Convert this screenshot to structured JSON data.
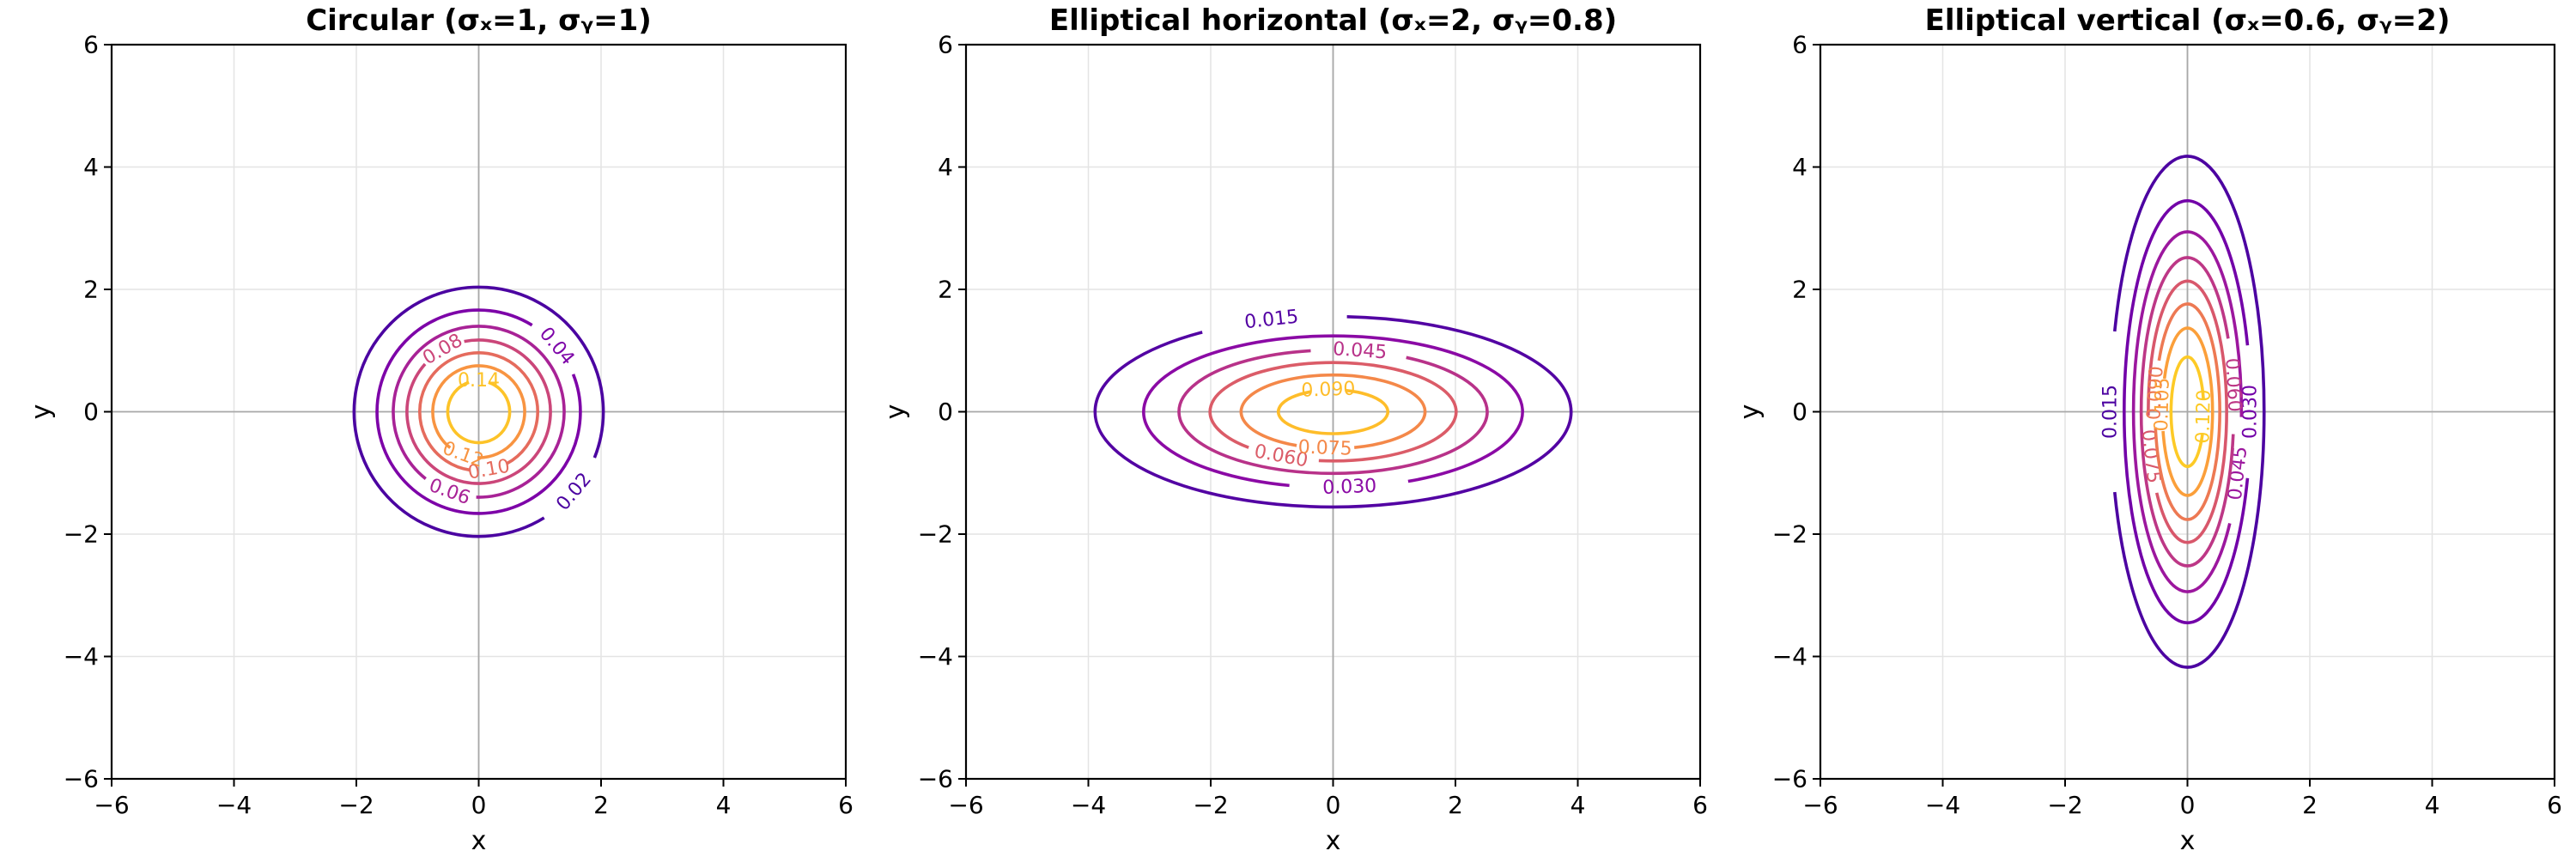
{
  "figure": {
    "background": "#ffffff",
    "colormap": [
      "#0d0887",
      "#6a00a8",
      "#b12a90",
      "#e16462",
      "#fca636",
      "#f0f921"
    ]
  },
  "chart_data": [
    {
      "type": "contour",
      "title": "Circular (σₓ=1, σᵧ=1)",
      "xlabel": "x",
      "ylabel": "y",
      "xlim": [
        -6,
        6
      ],
      "ylim": [
        -6,
        6
      ],
      "xticks": [
        -6,
        -4,
        -2,
        0,
        2,
        4,
        6
      ],
      "yticks": [
        -6,
        -4,
        -2,
        0,
        2,
        4,
        6
      ],
      "tick_labels": [
        "−6",
        "−4",
        "−2",
        "0",
        "2",
        "4",
        "6"
      ],
      "grid": true,
      "function": "bivariate gaussian centered at (0,0)",
      "sigma_x": 1,
      "sigma_y": 1,
      "levels": [
        0.02,
        0.04,
        0.06,
        0.08,
        0.1,
        0.12,
        0.14
      ],
      "level_labels": [
        "0.02",
        "0.04",
        "0.06",
        "0.08",
        "0.10",
        "0.12",
        "0.14"
      ],
      "level_colors": [
        "#4b03a1",
        "#7d03a8",
        "#a82296",
        "#cb4679",
        "#e56b5d",
        "#f89441",
        "#fdc328"
      ],
      "label_angles_deg": [
        -40,
        40,
        -110,
        120,
        -80,
        -110,
        90
      ]
    },
    {
      "type": "contour",
      "title": "Elliptical horizontal (σₓ=2, σᵧ=0.8)",
      "xlabel": "x",
      "ylabel": "y",
      "xlim": [
        -6,
        6
      ],
      "ylim": [
        -6,
        6
      ],
      "xticks": [
        -6,
        -4,
        -2,
        0,
        2,
        4,
        6
      ],
      "yticks": [
        -6,
        -4,
        -2,
        0,
        2,
        4,
        6
      ],
      "tick_labels": [
        "−6",
        "−4",
        "−2",
        "0",
        "2",
        "4",
        "6"
      ],
      "grid": true,
      "function": "bivariate gaussian centered at (0,0)",
      "sigma_x": 2,
      "sigma_y": 0.8,
      "levels": [
        0.015,
        0.03,
        0.045,
        0.06,
        0.075,
        0.09
      ],
      "level_labels": [
        "0.015",
        "0.030",
        "0.045",
        "0.060",
        "0.075",
        "0.090"
      ],
      "level_colors": [
        "#5302a3",
        "#8b0aa5",
        "#b83289",
        "#db5c68",
        "#f48849",
        "#febd2a"
      ],
      "label_angles_deg": [
        105,
        -85,
        80,
        -115,
        -95,
        95
      ]
    },
    {
      "type": "contour",
      "title": "Elliptical vertical (σₓ=0.6, σᵧ=2)",
      "xlabel": "x",
      "ylabel": "y",
      "xlim": [
        -6,
        6
      ],
      "ylim": [
        -6,
        6
      ],
      "xticks": [
        -6,
        -4,
        -2,
        0,
        2,
        4,
        6
      ],
      "yticks": [
        -6,
        -4,
        -2,
        0,
        2,
        4,
        6
      ],
      "tick_labels": [
        "−6",
        "−4",
        "−2",
        "0",
        "2",
        "4",
        "6"
      ],
      "grid": true,
      "function": "bivariate gaussian centered at (0,0)",
      "sigma_x": 0.6,
      "sigma_y": 2,
      "levels": [
        0.015,
        0.03,
        0.045,
        0.06,
        0.075,
        0.09,
        0.105,
        0.12
      ],
      "level_labels": [
        "0.015",
        "0.030",
        "0.045",
        "0.060",
        "0.075",
        "0.090",
        "0.105",
        "0.120"
      ],
      "level_colors": [
        "#4c02a1",
        "#7201a8",
        "#9c179e",
        "#bd3786",
        "#d8576b",
        "#ed7953",
        "#fb9f3a",
        "#fdca26"
      ],
      "label_angles_deg": [
        180,
        0,
        -20,
        10,
        -160,
        170,
        175,
        -5
      ]
    }
  ]
}
